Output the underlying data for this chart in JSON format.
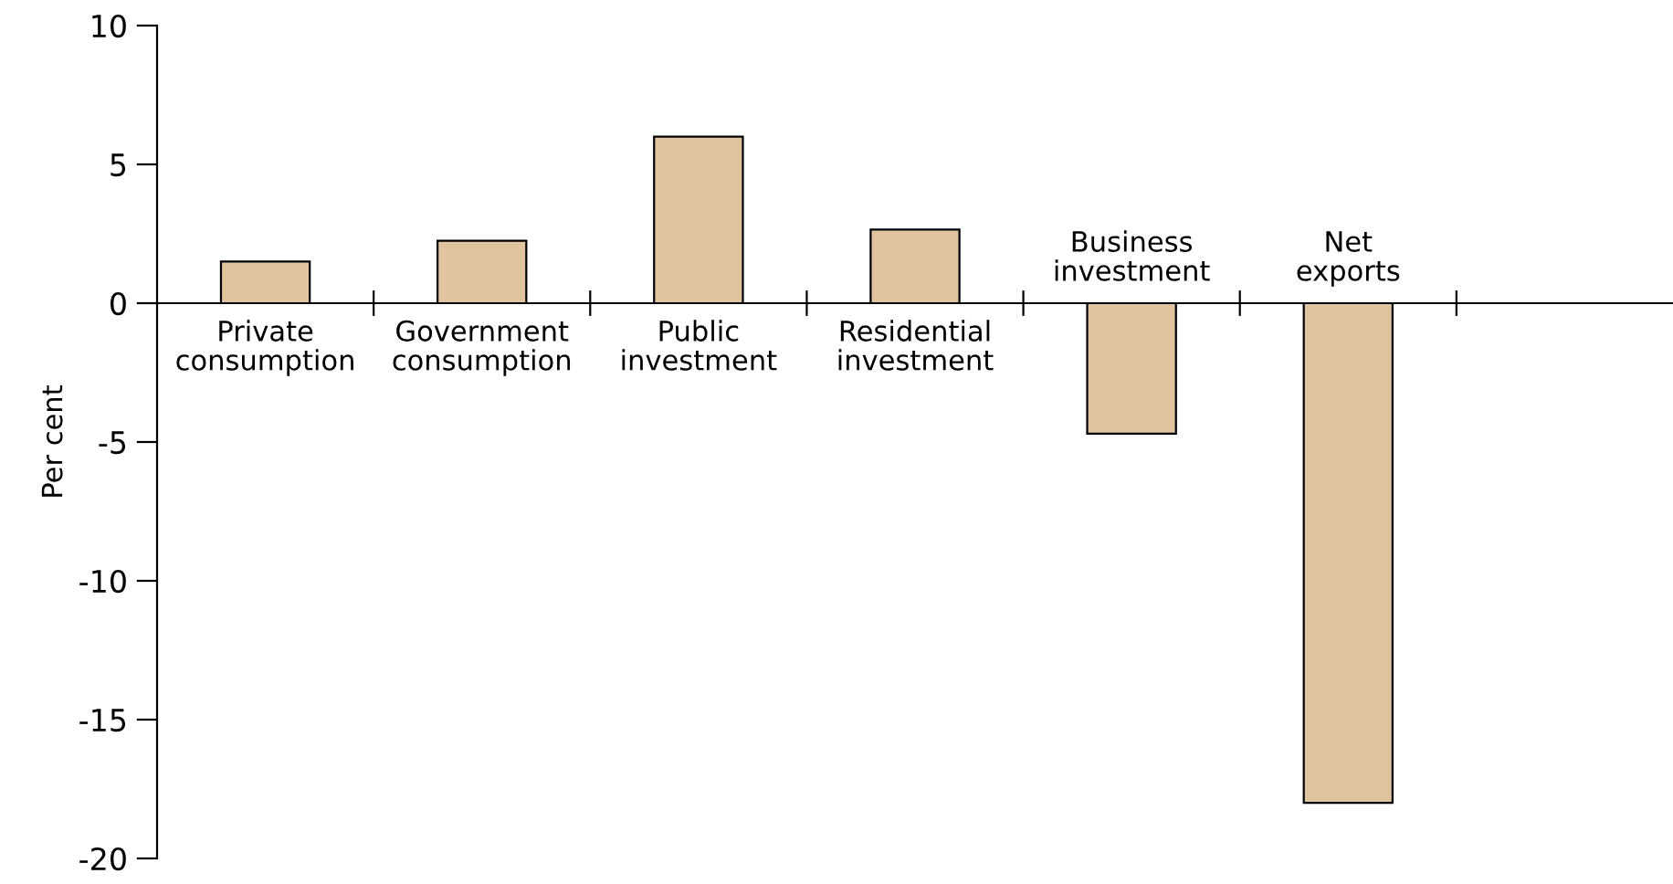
{
  "chart_data": {
    "type": "bar",
    "ylabel": "Per cent",
    "categories": [
      "Private\nconsumption",
      "Government\nconsumption",
      "Public\ninvestment",
      "Residential\ninvestment",
      "Business\ninvestment",
      "Net\nexports",
      null
    ],
    "values": [
      1.5,
      2.25,
      6.0,
      2.65,
      -4.7,
      -18.0,
      null
    ],
    "color": "#dfc49f",
    "ylim": [
      -20,
      10
    ],
    "yticks": [
      -20,
      -15,
      -10,
      -5,
      0,
      5,
      10
    ],
    "grid": false,
    "legend": false
  }
}
